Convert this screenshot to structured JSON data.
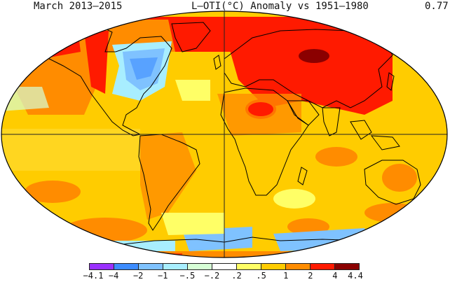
{
  "header": {
    "period": "March 2013–2015",
    "title": "L–OTI(°C) Anomaly vs 1951–1980",
    "global_mean": "0.77"
  },
  "legend": {
    "colors": [
      "#9a30ff",
      "#3d8cff",
      "#7fc2ff",
      "#a8eeff",
      "#d6ffd6",
      "#ffffff",
      "#ffff66",
      "#ffcc00",
      "#ff8c00",
      "#ff1a00",
      "#8b0000"
    ],
    "labels": [
      "−4.1",
      "−4",
      "−2",
      "−1",
      "−.5",
      "−.2",
      ".2",
      ".5",
      "1",
      "2",
      "4",
      "4.4"
    ]
  },
  "map": {
    "projection": "Robinson",
    "ocean_fill": "#ffcc00",
    "land_outline": "#000000",
    "graticule_color": "#222222"
  }
}
